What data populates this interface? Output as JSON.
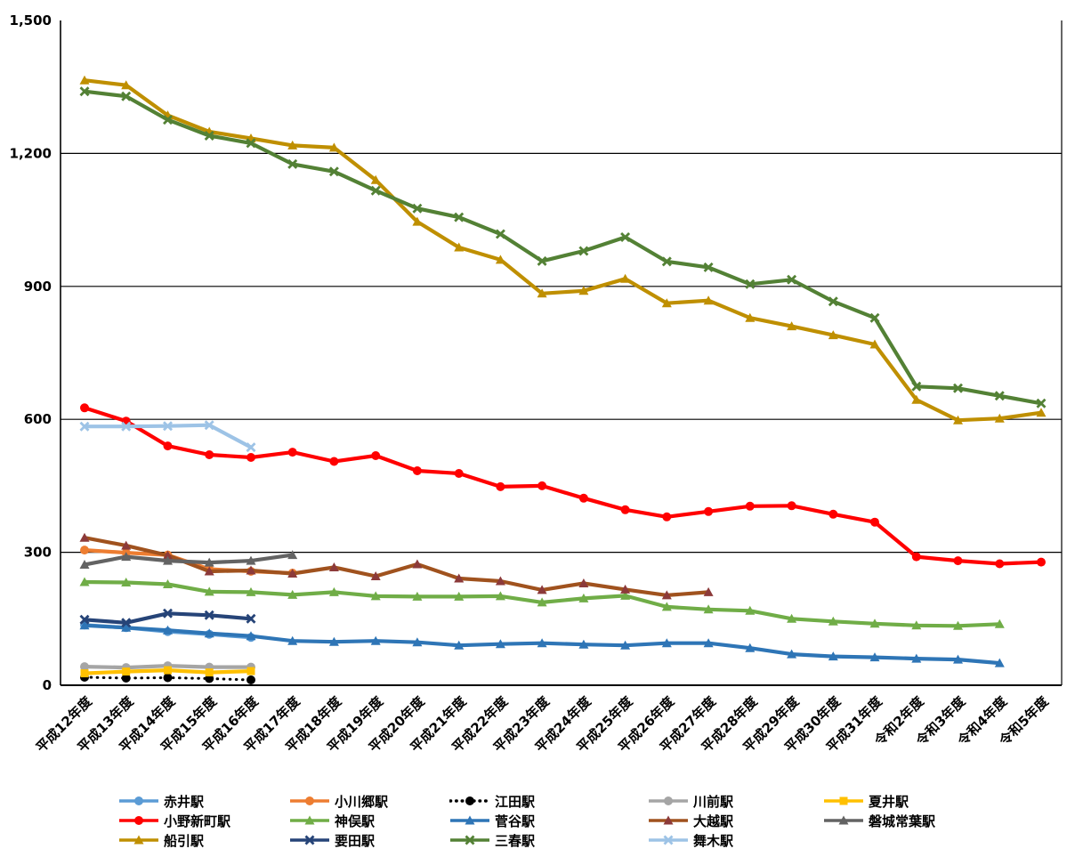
{
  "chart_data": {
    "type": "line",
    "title": "",
    "xlabel": "",
    "ylabel": "",
    "grid": "horizontal-black",
    "legend_position": "bottom",
    "categories": [
      "平成12年度",
      "平成13年度",
      "平成14年度",
      "平成15年度",
      "平成16年度",
      "平成17年度",
      "平成18年度",
      "平成19年度",
      "平成20年度",
      "平成21年度",
      "平成22年度",
      "平成23年度",
      "平成24年度",
      "平成25年度",
      "平成26年度",
      "平成27年度",
      "平成28年度",
      "平成29年度",
      "平成30年度",
      "平成31年度",
      "令和2年度",
      "令和3年度",
      "令和4年度",
      "令和5年度"
    ],
    "y_axis": {
      "min": 0,
      "max": 1500,
      "tick_interval": 300,
      "tick_labels": [
        "0",
        "300",
        "600",
        "900",
        "1,200",
        "1,500"
      ]
    },
    "series": [
      {
        "name": "赤井駅",
        "color": "#5B9BD5",
        "marker": "circle",
        "line_style": "solid",
        "values": [
          136,
          130,
          121,
          115,
          108,
          null,
          null,
          null,
          null,
          null,
          null,
          null,
          null,
          null,
          null,
          null,
          null,
          null,
          null,
          null,
          null,
          null,
          null,
          null
        ]
      },
      {
        "name": "小川郷駅",
        "color": "#ED7D31",
        "marker": "circle",
        "line_style": "solid",
        "values": [
          305,
          299,
          294,
          262,
          257,
          253,
          null,
          null,
          null,
          null,
          null,
          null,
          null,
          null,
          null,
          null,
          null,
          null,
          null,
          null,
          null,
          null,
          null,
          null
        ]
      },
      {
        "name": "江田駅",
        "color": "#000000",
        "marker": "circle",
        "line_style": "dotted",
        "values": [
          18,
          16,
          17,
          15,
          12,
          null,
          null,
          null,
          null,
          null,
          null,
          null,
          null,
          null,
          null,
          null,
          null,
          null,
          null,
          null,
          null,
          null,
          null,
          null
        ]
      },
      {
        "name": "川前駅",
        "color": "#A5A5A5",
        "marker": "circle",
        "line_style": "solid",
        "values": [
          42,
          40,
          44,
          41,
          41,
          null,
          null,
          null,
          null,
          null,
          null,
          null,
          null,
          null,
          null,
          null,
          null,
          null,
          null,
          null,
          null,
          null,
          null,
          null
        ]
      },
      {
        "name": "夏井駅",
        "color": "#FFC000",
        "marker": "square",
        "line_style": "solid",
        "values": [
          27,
          31,
          34,
          29,
          32,
          null,
          null,
          null,
          null,
          null,
          null,
          null,
          null,
          null,
          null,
          null,
          null,
          null,
          null,
          null,
          null,
          null,
          null,
          null
        ]
      },
      {
        "name": "小野新町駅",
        "color": "#FF0000",
        "marker": "circle",
        "line_style": "solid",
        "values": [
          626,
          596,
          540,
          520,
          514,
          526,
          505,
          518,
          484,
          478,
          448,
          450,
          422,
          396,
          380,
          392,
          404,
          405,
          386,
          368,
          290,
          281,
          274,
          278
        ]
      },
      {
        "name": "神俣駅",
        "color": "#70AD47",
        "marker": "triangle",
        "line_style": "solid",
        "values": [
          233,
          232,
          228,
          211,
          210,
          204,
          210,
          201,
          200,
          200,
          201,
          187,
          196,
          202,
          177,
          171,
          168,
          150,
          144,
          139,
          135,
          134,
          138,
          null
        ]
      },
      {
        "name": "菅谷駅",
        "color": "#2E75B6",
        "marker": "triangle",
        "line_style": "solid",
        "values": [
          135,
          130,
          124,
          117,
          111,
          100,
          98,
          100,
          97,
          90,
          93,
          95,
          92,
          90,
          95,
          95,
          84,
          70,
          65,
          63,
          60,
          58,
          50,
          null
        ]
      },
      {
        "name": "大越駅",
        "color": "#A0521E",
        "marker_color": "#8C3A3A",
        "marker": "triangle",
        "line_style": "solid",
        "values": [
          333,
          315,
          293,
          257,
          259,
          252,
          266,
          246,
          273,
          241,
          235,
          215,
          230,
          216,
          203,
          210,
          null,
          null,
          null,
          null,
          null,
          null,
          null,
          null
        ]
      },
      {
        "name": "磐城常葉駅",
        "color": "#636363",
        "marker": "triangle",
        "line_style": "solid",
        "values": [
          272,
          290,
          281,
          277,
          281,
          294,
          null,
          null,
          null,
          null,
          null,
          null,
          null,
          null,
          null,
          null,
          null,
          null,
          null,
          null,
          null,
          null,
          null,
          null
        ]
      },
      {
        "name": "船引駅",
        "color": "#BF8F00",
        "marker": "triangle",
        "line_style": "solid",
        "values": [
          1365,
          1354,
          1286,
          1249,
          1234,
          1218,
          1213,
          1140,
          1046,
          988,
          960,
          884,
          890,
          917,
          862,
          868,
          829,
          810,
          790,
          769,
          644,
          598,
          602,
          615
        ]
      },
      {
        "name": "要田駅",
        "color": "#264478",
        "marker": "x",
        "line_style": "solid",
        "values": [
          148,
          141,
          162,
          158,
          150,
          null,
          null,
          null,
          null,
          null,
          null,
          null,
          null,
          null,
          null,
          null,
          null,
          null,
          null,
          null,
          null,
          null,
          null,
          null
        ]
      },
      {
        "name": "三春駅",
        "color": "#538135",
        "marker": "x",
        "line_style": "solid",
        "values": [
          1340,
          1329,
          1276,
          1240,
          1223,
          1176,
          1159,
          1116,
          1076,
          1056,
          1018,
          957,
          980,
          1011,
          956,
          943,
          905,
          915,
          866,
          829,
          674,
          670,
          653,
          636
        ]
      },
      {
        "name": "舞木駅",
        "color": "#9DC3E6",
        "marker": "x",
        "line_style": "solid",
        "values": [
          584,
          584,
          585,
          587,
          537,
          null,
          null,
          null,
          null,
          null,
          null,
          null,
          null,
          null,
          null,
          null,
          null,
          null,
          null,
          null,
          null,
          null,
          null,
          null
        ]
      }
    ],
    "legend_rows": [
      [
        "赤井駅",
        "小川郷駅",
        "江田駅",
        "川前駅",
        "夏井駅"
      ],
      [
        "小野新町駅",
        "神俣駅",
        "菅谷駅",
        "大越駅",
        "磐城常葉駅"
      ],
      [
        "船引駅",
        "要田駅",
        "三春駅",
        "舞木駅"
      ]
    ]
  }
}
